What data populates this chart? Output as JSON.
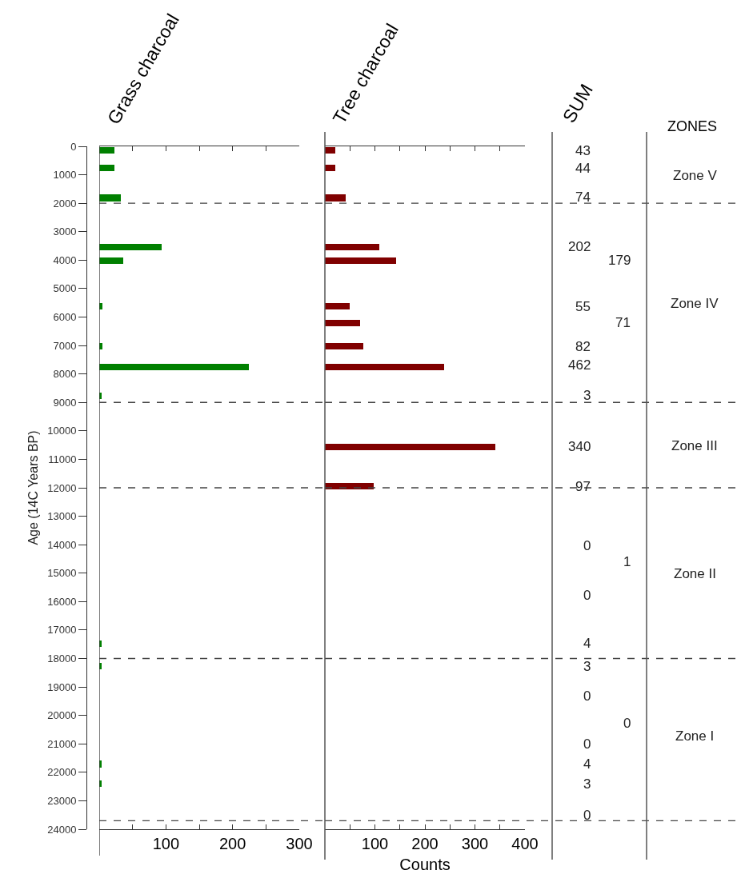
{
  "chart_data": [
    {
      "type": "bar",
      "orientation": "horizontal",
      "title": "Grass charcoal",
      "ylabel": "Age (14C Years BP)",
      "x": [
        140,
        750,
        1810,
        3530,
        4030,
        5630,
        7030,
        7750,
        8770,
        17490,
        18260,
        21710,
        22400
      ],
      "values": [
        23,
        23,
        32,
        94,
        36,
        5,
        5,
        224,
        3,
        4,
        3,
        4,
        3
      ],
      "color": "#008000",
      "xlim": [
        0,
        300
      ],
      "xticks": [
        {
          "value": 50,
          "label": null
        },
        100,
        {
          "value": 150,
          "label": null
        },
        200,
        {
          "value": 250,
          "label": null
        },
        300
      ],
      "ylim": [
        24000,
        0
      ],
      "yticks": [
        0,
        1000,
        2000,
        3000,
        4000,
        5000,
        6000,
        7000,
        8000,
        9000,
        10000,
        11000,
        12000,
        13000,
        14000,
        15000,
        16000,
        17000,
        18000,
        19000,
        20000,
        21000,
        22000,
        23000,
        24000
      ],
      "grid": false,
      "legend": false,
      "ref_lines": [
        {
          "axis": "y",
          "value": 2000,
          "line_style": "dashed"
        },
        {
          "axis": "y",
          "value": 9000,
          "line_style": "dashed"
        },
        {
          "axis": "y",
          "value": 12000,
          "line_style": "dashed"
        },
        {
          "axis": "y",
          "value": 18000,
          "line_style": "dashed"
        },
        {
          "axis": "y",
          "value": 23700,
          "line_style": "dashed"
        }
      ]
    },
    {
      "type": "bar",
      "orientation": "horizontal",
      "title": "Tree charcoal",
      "xlabel": "Counts",
      "x": [
        140,
        750,
        1810,
        3530,
        4030,
        5630,
        6220,
        7030,
        7750,
        10560,
        11940
      ],
      "values": [
        20,
        21,
        42,
        108,
        143,
        50,
        71,
        77,
        238,
        340,
        97
      ],
      "color": "#800000",
      "xlim": [
        0,
        400
      ],
      "xticks": [
        {
          "value": 50,
          "label": null
        },
        100,
        {
          "value": 150,
          "label": null
        },
        200,
        {
          "value": 250,
          "label": null
        },
        300,
        {
          "value": 350,
          "label": null
        },
        400
      ],
      "ylim": [
        24000,
        0
      ],
      "tick_labels": "x",
      "grid": false,
      "legend": false,
      "ref_lines": [
        {
          "axis": "y",
          "value": 2000,
          "line_style": "dashed"
        },
        {
          "axis": "y",
          "value": 9000,
          "line_style": "dashed"
        },
        {
          "axis": "y",
          "value": 12000,
          "line_style": "dashed"
        },
        {
          "axis": "y",
          "value": 18000,
          "line_style": "dashed"
        },
        {
          "axis": "y",
          "value": 23700,
          "line_style": "dashed"
        }
      ]
    },
    {
      "type": "other",
      "title": "SUM",
      "annotations": [
        "43",
        "44",
        "74",
        "202",
        "55",
        "82",
        "462",
        "3",
        "340",
        "97",
        "0",
        "0",
        "4",
        "3",
        "0",
        "0",
        "4",
        "3",
        "0",
        "179",
        "71",
        "1",
        "0"
      ]
    },
    {
      "type": "other",
      "title": "ZONES",
      "annotations": [
        "Zone V",
        "Zone IV",
        "Zone III",
        "Zone II",
        "Zone I"
      ]
    }
  ]
}
